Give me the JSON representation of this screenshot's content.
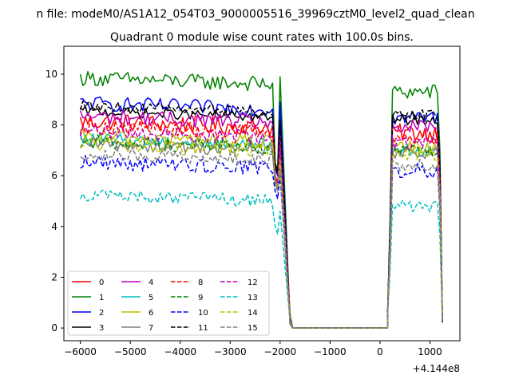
{
  "figure": {
    "suptitle": "n file: modeM0/AS1A12_054T03_9000005516_39969cztM0_level2_quad_clean"
  },
  "chart_data": {
    "type": "line",
    "title": "Quadrant 0 module wise count rates with 100.0s bins.",
    "xlabel": "",
    "ylabel": "",
    "x_offset_label": "+4.144e8",
    "xlim": [
      -6330,
      1600
    ],
    "ylim": [
      -0.5,
      11.1
    ],
    "xticks": [
      -6000,
      -5000,
      -4000,
      -3000,
      -2000,
      -1000,
      0,
      1000
    ],
    "xtick_labels": [
      "−6000",
      "−5000",
      "−4000",
      "−3000",
      "−2000",
      "−1000",
      "0",
      "1000"
    ],
    "yticks": [
      0,
      2,
      4,
      6,
      8,
      10
    ],
    "ytick_labels": [
      "0",
      "2",
      "4",
      "6",
      "8",
      "10"
    ],
    "grid": false,
    "legend_position": "lower-left",
    "legend_columns": 4,
    "x_note": "x values are offsets from 4.144e8",
    "seg1_x": {
      "start": -6000,
      "step": 50,
      "end": -2050
    },
    "seg2_x": [
      -2000,
      -1800,
      -1750
    ],
    "gap_x": [
      -1750,
      150
    ],
    "seg3_x": {
      "start": 150,
      "step": 50,
      "end": 1250
    },
    "series": [
      {
        "name": "0",
        "color": "#ff0000",
        "dash": "solid",
        "level1": 7.9,
        "level3": 7.7,
        "dip": 5.9,
        "peak2": 7.0,
        "amp": 0.35
      },
      {
        "name": "1",
        "color": "#008000",
        "dash": "solid",
        "level1": 9.6,
        "level3": 9.3,
        "dip": 6.5,
        "peak2": 9.9,
        "amp": 0.3
      },
      {
        "name": "2",
        "color": "#0000ff",
        "dash": "solid",
        "level1": 8.6,
        "level3": 8.3,
        "dip": 6.3,
        "peak2": 8.9,
        "amp": 0.3
      },
      {
        "name": "3",
        "color": "#000000",
        "dash": "solid",
        "level1": 8.3,
        "level3": 8.2,
        "dip": 6.4,
        "peak2": 8.1,
        "amp": 0.2
      },
      {
        "name": "4",
        "color": "#bf00bf",
        "dash": "solid",
        "level1": 8.1,
        "level3": 7.9,
        "dip": 6.0,
        "peak2": 7.6,
        "amp": 0.3
      },
      {
        "name": "5",
        "color": "#00bfbf",
        "dash": "solid",
        "level1": 7.2,
        "level3": 7.0,
        "dip": 5.9,
        "peak2": 6.8,
        "amp": 0.25
      },
      {
        "name": "6",
        "color": "#bfbf00",
        "dash": "solid",
        "level1": 7.3,
        "level3": 7.1,
        "dip": 5.9,
        "peak2": 7.0,
        "amp": 0.3
      },
      {
        "name": "7",
        "color": "#808080",
        "dash": "solid",
        "level1": 7.0,
        "level3": 6.9,
        "dip": 5.7,
        "peak2": 6.6,
        "amp": 0.25
      },
      {
        "name": "8",
        "color": "#ff0000",
        "dash": "dashed",
        "level1": 7.7,
        "level3": 7.5,
        "dip": 6.0,
        "peak2": 7.2,
        "amp": 0.3
      },
      {
        "name": "9",
        "color": "#008000",
        "dash": "dashed",
        "level1": 7.1,
        "level3": 7.0,
        "dip": 5.8,
        "peak2": 6.8,
        "amp": 0.3
      },
      {
        "name": "10",
        "color": "#0000ff",
        "dash": "dashed",
        "level1": 6.3,
        "level3": 6.2,
        "dip": 5.4,
        "peak2": 6.0,
        "amp": 0.3
      },
      {
        "name": "11",
        "color": "#000000",
        "dash": "dashed",
        "level1": 8.5,
        "level3": 8.4,
        "dip": 6.5,
        "peak2": 8.2,
        "amp": 0.2
      },
      {
        "name": "12",
        "color": "#bf00bf",
        "dash": "dashed",
        "level1": 7.5,
        "level3": 7.3,
        "dip": 5.9,
        "peak2": 7.1,
        "amp": 0.3
      },
      {
        "name": "13",
        "color": "#00bfbf",
        "dash": "dashed",
        "level1": 5.0,
        "level3": 4.8,
        "dip": 4.0,
        "peak2": 4.6,
        "amp": 0.25
      },
      {
        "name": "14",
        "color": "#bfbf00",
        "dash": "dashed",
        "level1": 7.0,
        "level3": 6.9,
        "dip": 5.8,
        "peak2": 6.6,
        "amp": 0.3
      },
      {
        "name": "15",
        "color": "#808080",
        "dash": "dashed",
        "level1": 6.6,
        "level3": 6.4,
        "dip": 5.7,
        "peak2": 6.2,
        "amp": 0.25
      }
    ]
  }
}
